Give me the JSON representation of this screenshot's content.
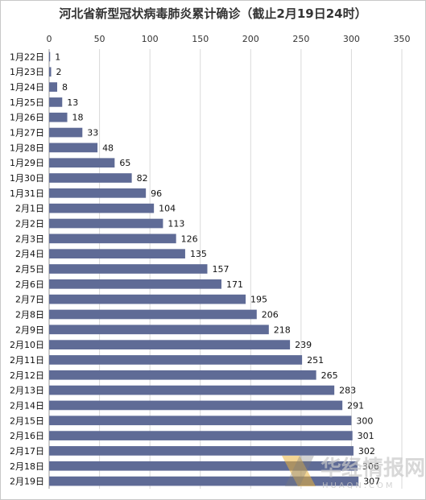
{
  "chart_data": {
    "type": "bar",
    "orientation": "horizontal",
    "title": "河北省新型冠状病毒肺炎累计确诊（截止2月19日24时）",
    "categories": [
      "1月22日",
      "1月23日",
      "1月24日",
      "1月25日",
      "1月26日",
      "1月27日",
      "1月28日",
      "1月29日",
      "1月30日",
      "1月31日",
      "2月1日",
      "2月2日",
      "2月3日",
      "2月4日",
      "2月5日",
      "2月6日",
      "2月7日",
      "2月8日",
      "2月9日",
      "2月10日",
      "2月11日",
      "2月12日",
      "2月13日",
      "2月14日",
      "2月15日",
      "2月16日",
      "2月17日",
      "2月18日",
      "2月19日"
    ],
    "values": [
      1,
      2,
      8,
      13,
      18,
      33,
      48,
      65,
      82,
      96,
      104,
      113,
      126,
      135,
      157,
      171,
      195,
      206,
      218,
      239,
      251,
      265,
      283,
      291,
      300,
      301,
      302,
      306,
      307
    ],
    "xlim": [
      0,
      350
    ],
    "xticks": [
      0,
      50,
      100,
      150,
      200,
      250,
      300,
      350
    ],
    "axis_position": "top",
    "grid": "vertical",
    "bar_color": "#5f6b96",
    "legend": "none"
  },
  "watermark": {
    "text": "华经情报网",
    "subtext": "HUAON.COM"
  }
}
